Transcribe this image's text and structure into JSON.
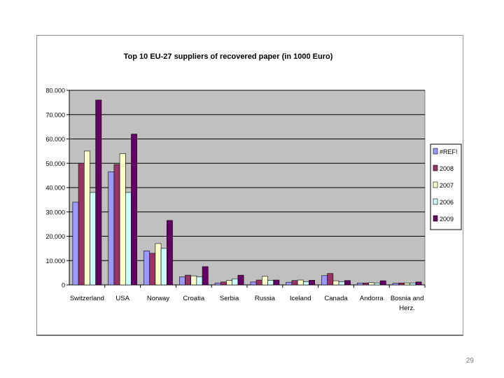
{
  "page_number": "29",
  "chart_data": {
    "type": "bar",
    "title": "Top 10 EU-27 suppliers of recovered paper (in 1000 Euro)",
    "categories": [
      "Switzerland",
      "USA",
      "Norway",
      "Croatia",
      "Serbia",
      "Russia",
      "Iceland",
      "Canada",
      "Andorra",
      "Bosnia and Herz."
    ],
    "y_tick_labels": [
      "0",
      "10.000",
      "20.000",
      "30.000",
      "40.000",
      "50.000",
      "60.000",
      "70.000",
      "80.000"
    ],
    "ylim": [
      0,
      80000
    ],
    "grid": true,
    "legend_position": "right",
    "plot_bg": "#c0c0c0",
    "series": [
      {
        "name": "#REF!",
        "color": "#9999ff",
        "values": [
          34000,
          46500,
          14000,
          3300,
          800,
          1200,
          1100,
          3800,
          800,
          700
        ]
      },
      {
        "name": "2008",
        "color": "#993366",
        "values": [
          50000,
          49500,
          13000,
          4000,
          1200,
          2000,
          1800,
          4700,
          800,
          800
        ]
      },
      {
        "name": "2007",
        "color": "#ffffcc",
        "values": [
          55000,
          54000,
          17000,
          3700,
          1800,
          3500,
          2000,
          1700,
          900,
          800
        ]
      },
      {
        "name": "2006",
        "color": "#ccffff",
        "values": [
          38000,
          38000,
          15000,
          3300,
          2500,
          1900,
          1300,
          1300,
          800,
          800
        ]
      },
      {
        "name": "2009",
        "color": "#660066",
        "values": [
          76000,
          62000,
          26500,
          7500,
          4000,
          2000,
          1900,
          1800,
          1700,
          1200
        ]
      }
    ]
  }
}
